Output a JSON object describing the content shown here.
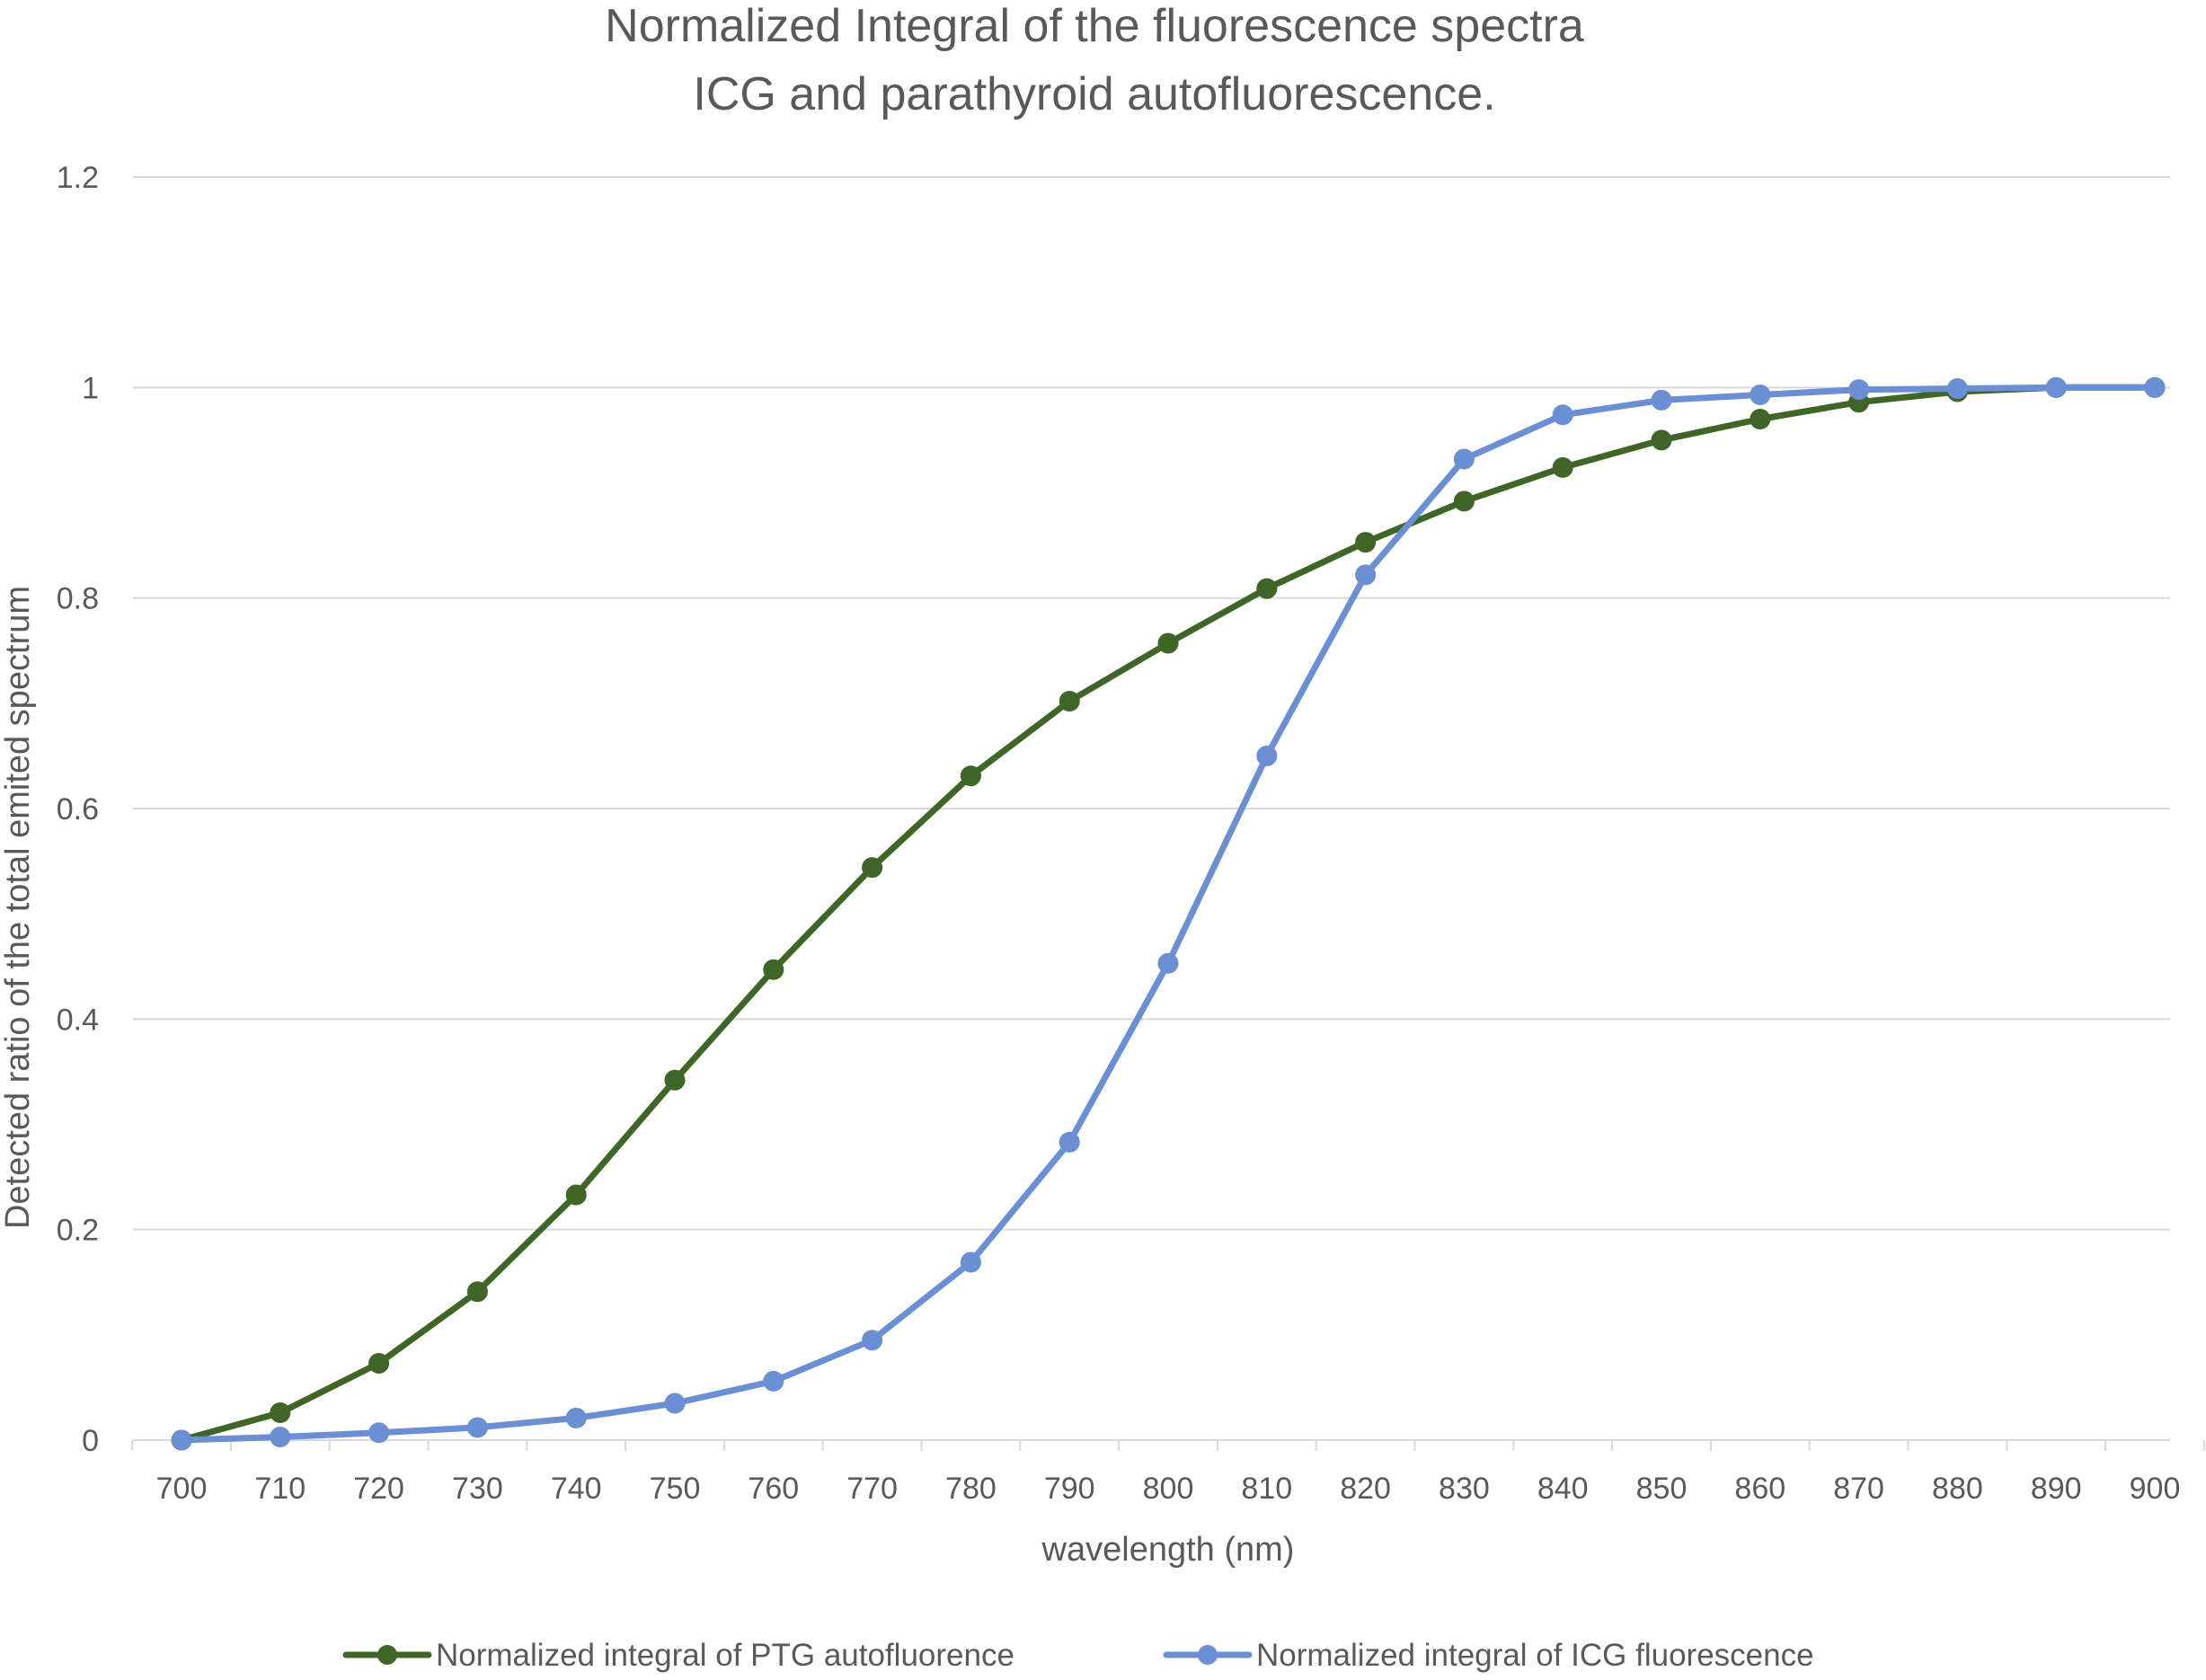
{
  "chart_data": {
    "type": "line",
    "title_lines": [
      "Normalized Integral of the fluorescence spectra",
      "ICG and parathyroid autofluorescence."
    ],
    "xlabel": "wavelength (nm)",
    "ylabel": "Detected ratio of the total emited spectrum",
    "x": [
      700,
      710,
      720,
      730,
      740,
      750,
      760,
      770,
      780,
      790,
      800,
      810,
      820,
      830,
      840,
      850,
      860,
      870,
      880,
      890,
      900
    ],
    "x_tick_labels": [
      "700",
      "710",
      "720",
      "730",
      "740",
      "750",
      "760",
      "770",
      "780",
      "790",
      "800",
      "810",
      "820",
      "830",
      "840",
      "850",
      "860",
      "870",
      "880",
      "890",
      "900"
    ],
    "ylim": [
      0,
      1.2
    ],
    "y_ticks": [
      0,
      0.2,
      0.4,
      0.6,
      0.8,
      1,
      1.2
    ],
    "y_tick_labels": [
      "0",
      "0.2",
      "0.4",
      "0.6",
      "0.8",
      "1",
      "1.2"
    ],
    "grid": true,
    "legend_position": "bottom",
    "series": [
      {
        "name": "Normalized integral of PTG autofluorence",
        "color": "#3f6527",
        "values": [
          0,
          0.026,
          0.073,
          0.141,
          0.233,
          0.342,
          0.447,
          0.544,
          0.631,
          0.702,
          0.757,
          0.809,
          0.853,
          0.892,
          0.924,
          0.95,
          0.97,
          0.986,
          0.996,
          1.0,
          1.0
        ]
      },
      {
        "name": "Normalized integral of ICG fluorescence",
        "color": "#6a8fd4",
        "values": [
          0,
          0.003,
          0.007,
          0.012,
          0.021,
          0.035,
          0.056,
          0.095,
          0.169,
          0.283,
          0.453,
          0.65,
          0.822,
          0.932,
          0.974,
          0.988,
          0.993,
          0.998,
          0.999,
          1.0,
          1.0
        ]
      }
    ]
  }
}
